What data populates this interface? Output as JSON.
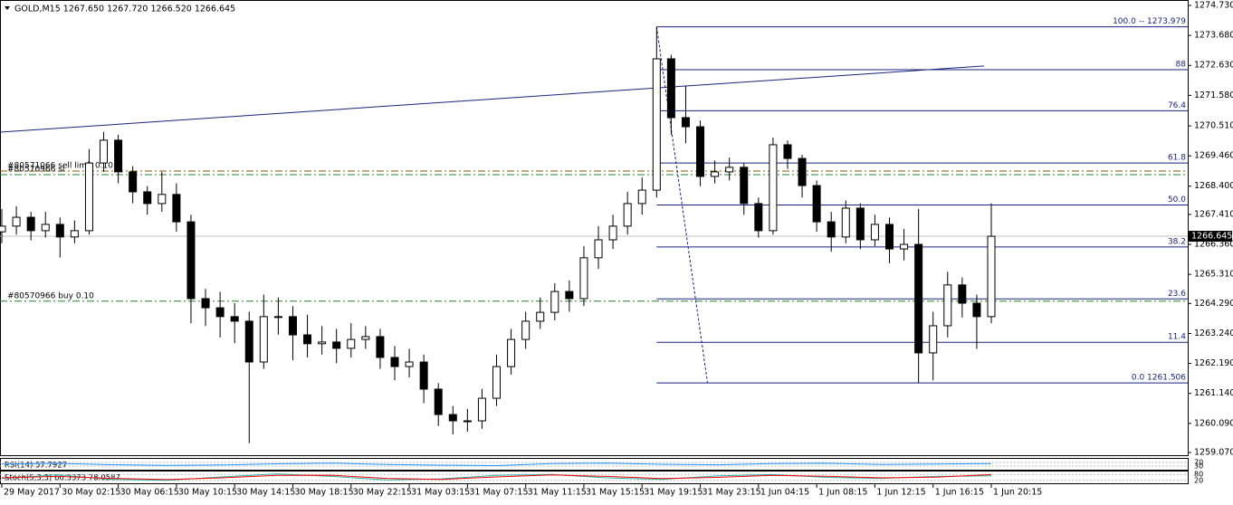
{
  "chart_data": {
    "type": "candlestick",
    "header": "GOLD,M15  1267.650 1267.720 1266.520 1266.645",
    "xlim": [
      -0.5,
      326
    ],
    "ylim": [
      1258.975,
      1274.92
    ],
    "yticks": [
      {
        "value": 1274.73,
        "label": "1274.730"
      },
      {
        "value": 1273.68,
        "label": "1273.680"
      },
      {
        "value": 1272.63,
        "label": "1272.630"
      },
      {
        "value": 1271.58,
        "label": "1271.580"
      },
      {
        "value": 1270.51,
        "label": "1270.510"
      },
      {
        "value": 1269.46,
        "label": "1269.460"
      },
      {
        "value": 1268.4,
        "label": "1268.400"
      },
      {
        "value": 1267.41,
        "label": "1267.410"
      },
      {
        "value": 1266.36,
        "label": "1266.360"
      },
      {
        "value": 1265.31,
        "label": "1265.310"
      },
      {
        "value": 1264.29,
        "label": "1264.290"
      },
      {
        "value": 1263.24,
        "label": "1263.240"
      },
      {
        "value": 1262.19,
        "label": "1262.190"
      },
      {
        "value": 1261.14,
        "label": "1261.140"
      },
      {
        "value": 1260.09,
        "label": "1260.090"
      },
      {
        "value": 1259.07,
        "label": "1259.070"
      }
    ],
    "xticks": [
      {
        "value": 0,
        "label": "29 May 2017"
      },
      {
        "value": 16,
        "label": "30 May 02:15"
      },
      {
        "value": 32,
        "label": "30 May 06:15"
      },
      {
        "value": 48,
        "label": "30 May 10:15"
      },
      {
        "value": 64,
        "label": "30 May 14:15"
      },
      {
        "value": 80,
        "label": "30 May 18:15"
      },
      {
        "value": 96,
        "label": "30 May 22:15"
      },
      {
        "value": 112,
        "label": "31 May 03:15"
      },
      {
        "value": 128,
        "label": "31 May 07:15"
      },
      {
        "value": 144,
        "label": "31 May 11:15"
      },
      {
        "value": 160,
        "label": "31 May 15:15"
      },
      {
        "value": 176,
        "label": "31 May 19:15"
      },
      {
        "value": 192,
        "label": "31 May 23:15"
      },
      {
        "value": 208,
        "label": "1 Jun 04:15"
      },
      {
        "value": 224,
        "label": "1 Jun 08:15"
      },
      {
        "value": 240,
        "label": "1 Jun 12:15"
      },
      {
        "value": 256,
        "label": "1 Jun 16:15"
      },
      {
        "value": 272,
        "label": "1 Jun 20:15"
      }
    ],
    "x": [
      0,
      4,
      8,
      12,
      16,
      20,
      24,
      28,
      32,
      36,
      40,
      44,
      48,
      52,
      56,
      60,
      64,
      68,
      72,
      76,
      80,
      84,
      88,
      92,
      96,
      100,
      104,
      108,
      112,
      116,
      120,
      124,
      128,
      132,
      136,
      140,
      144,
      148,
      152,
      156,
      160,
      164,
      168,
      172,
      176,
      180,
      184,
      188,
      192,
      196,
      200,
      204,
      208,
      212,
      216,
      220,
      224,
      228,
      232,
      236,
      240,
      244,
      248,
      252,
      256,
      260,
      264,
      268,
      272
    ],
    "open": [
      1266.8,
      1267.0,
      1267.31,
      1266.84,
      1267.06,
      1266.62,
      1266.84,
      1269.21,
      1270.01,
      1268.9,
      1268.2,
      1267.79,
      1268.11,
      1267.15,
      1264.46,
      1264.14,
      1263.83,
      1263.67,
      1262.24,
      1263.83,
      1263.83,
      1263.19,
      1262.88,
      1262.94,
      1262.72,
      1263.03,
      1263.13,
      1262.4,
      1262.08,
      1262.24,
      1261.29,
      1260.4,
      1260.18,
      1260.18,
      1260.97,
      1262.08,
      1263.03,
      1263.67,
      1263.98,
      1264.71,
      1264.46,
      1265.89,
      1266.52,
      1267.0,
      1267.79,
      1268.26,
      1272.86,
      1270.8,
      1270.48,
      1268.74,
      1268.9,
      1269.06,
      1267.79,
      1266.84,
      1269.85,
      1269.37,
      1268.42,
      1267.15,
      1266.62,
      1267.63,
      1266.52,
      1267.06,
      1266.2,
      1266.36,
      1262.56,
      1263.51,
      1264.94,
      1264.3,
      1263.83
    ],
    "high": [
      1267.6,
      1267.7,
      1267.5,
      1267.5,
      1267.3,
      1267.2,
      1269.7,
      1270.3,
      1270.2,
      1269.1,
      1268.4,
      1268.9,
      1268.5,
      1267.4,
      1264.8,
      1264.7,
      1264.3,
      1264.0,
      1264.6,
      1264.5,
      1264.2,
      1263.9,
      1263.5,
      1263.4,
      1263.6,
      1263.5,
      1263.4,
      1262.8,
      1262.7,
      1262.5,
      1261.5,
      1260.7,
      1260.6,
      1261.3,
      1262.5,
      1263.4,
      1264.0,
      1264.5,
      1265.0,
      1265.1,
      1266.3,
      1267.0,
      1267.4,
      1268.2,
      1268.7,
      1273.979,
      1273.0,
      1271.9,
      1270.7,
      1269.3,
      1269.4,
      1269.2,
      1268.0,
      1270.1,
      1270.0,
      1269.5,
      1268.6,
      1267.5,
      1267.9,
      1267.8,
      1267.4,
      1267.3,
      1266.9,
      1267.6,
      1264.0,
      1265.4,
      1265.2,
      1264.6,
      1267.8
    ],
    "low": [
      1266.4,
      1266.7,
      1266.5,
      1266.6,
      1265.9,
      1266.4,
      1266.7,
      1268.9,
      1268.5,
      1267.8,
      1267.4,
      1267.5,
      1266.8,
      1263.6,
      1263.5,
      1263.1,
      1262.9,
      1259.4,
      1262.0,
      1263.2,
      1262.3,
      1262.4,
      1262.5,
      1262.2,
      1262.4,
      1262.7,
      1262.0,
      1261.6,
      1261.7,
      1260.8,
      1260.0,
      1259.7,
      1259.8,
      1259.9,
      1260.7,
      1261.8,
      1262.7,
      1263.4,
      1263.7,
      1264.0,
      1264.2,
      1265.5,
      1266.2,
      1266.7,
      1267.4,
      1268.0,
      1270.2,
      1269.9,
      1268.4,
      1268.5,
      1268.6,
      1267.4,
      1266.6,
      1266.7,
      1269.0,
      1268.0,
      1266.8,
      1266.1,
      1266.4,
      1266.2,
      1266.3,
      1265.7,
      1265.8,
      1261.506,
      1261.6,
      1263.1,
      1263.8,
      1262.7,
      1263.6
    ],
    "close": [
      1267.0,
      1267.31,
      1266.84,
      1267.06,
      1266.62,
      1266.84,
      1269.21,
      1270.01,
      1268.9,
      1268.2,
      1267.79,
      1268.11,
      1267.15,
      1264.46,
      1264.14,
      1263.83,
      1263.67,
      1262.24,
      1263.83,
      1263.83,
      1263.19,
      1262.88,
      1262.94,
      1262.72,
      1263.03,
      1263.13,
      1262.4,
      1262.08,
      1262.24,
      1261.29,
      1260.4,
      1260.18,
      1260.18,
      1260.97,
      1262.08,
      1263.03,
      1263.67,
      1263.98,
      1264.71,
      1264.46,
      1265.89,
      1266.52,
      1267.0,
      1267.79,
      1268.26,
      1272.86,
      1270.8,
      1270.48,
      1268.74,
      1268.9,
      1269.06,
      1267.79,
      1266.84,
      1269.85,
      1269.37,
      1268.42,
      1267.15,
      1266.62,
      1267.63,
      1266.52,
      1267.06,
      1266.2,
      1266.36,
      1262.56,
      1263.51,
      1264.94,
      1264.3,
      1263.83,
      1266.645
    ],
    "current_price": 1266.645,
    "trendline": {
      "x": [
        -0.5,
        270
      ],
      "y": [
        1270.29,
        1272.61
      ],
      "color": "#1a237e"
    },
    "fib": {
      "x": [
        180,
        194
      ],
      "y": [
        1273.979,
        1261.506
      ],
      "color": "#1a237e",
      "levels": [
        {
          "label": "100.0 -- 1273.979",
          "price": 1273.979
        },
        {
          "label": "88",
          "price": 1272.48
        },
        {
          "label": "76.4",
          "price": 1271.04
        },
        {
          "label": "61.8",
          "price": 1269.21
        },
        {
          "label": "50.0",
          "price": 1267.74
        },
        {
          "label": "38.2",
          "price": 1266.27
        },
        {
          "label": "23.6",
          "price": 1264.45
        },
        {
          "label": "11.4",
          "price": 1262.93
        },
        {
          "label": "0.0  1261.506",
          "price": 1261.506
        }
      ]
    },
    "orders": [
      {
        "label": "#80571066 sell limit 0.10",
        "price": 1268.93,
        "color": "#8b5a00"
      },
      {
        "label": "#80570966 sl",
        "price": 1268.8,
        "color": "#2e7d32"
      },
      {
        "label": "#80570966 buy 0.10",
        "price": 1264.37,
        "color": "#2e7d32"
      }
    ],
    "rsi": {
      "label": "RSI(14) 57.7927",
      "ylim": [
        0,
        100
      ],
      "yticks": [
        70,
        30
      ],
      "color": "#1e90ff",
      "values": [
        52,
        60,
        45,
        38,
        42,
        55,
        63,
        48,
        40,
        35,
        58,
        62,
        50,
        44,
        57,
        61,
        47,
        53,
        58
      ]
    },
    "stoch": {
      "label": "Stoch(5,3,3) 66.3373 78.0587",
      "ylim": [
        0,
        100
      ],
      "yticks": [
        80,
        20
      ],
      "series": [
        {
          "color": "#20b2aa",
          "values": [
            40,
            75,
            30,
            20,
            55,
            85,
            60,
            25,
            35,
            70,
            80,
            45,
            30,
            65,
            78,
            50,
            40,
            60,
            66
          ]
        },
        {
          "color": "#ff0000",
          "values": [
            45,
            60,
            40,
            28,
            45,
            70,
            72,
            40,
            30,
            55,
            75,
            60,
            38,
            50,
            70,
            62,
            45,
            52,
            78
          ]
        }
      ]
    }
  }
}
